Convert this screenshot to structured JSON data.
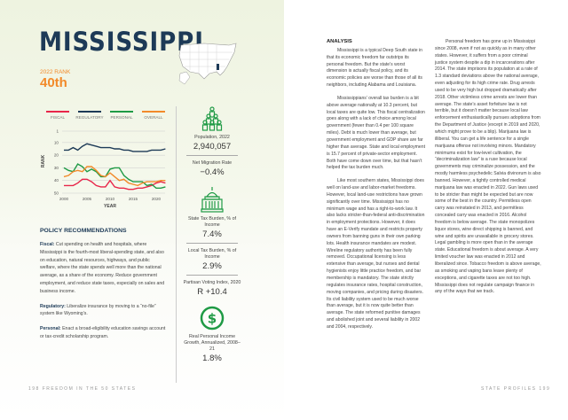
{
  "left_page": {
    "state": "MISSISSIPPI",
    "rank_label": "2022 RANK",
    "rank": "40th",
    "colors": {
      "navy": "#1d3a57",
      "orange": "#f28a2a",
      "green": "#1f9a45",
      "red": "#e8264a"
    },
    "stats": [
      {
        "icon": "people-pyramid-icon",
        "label": "Population, 2022",
        "value": "2,940,057"
      },
      {
        "label": "Net Migration Rate",
        "value": "−0.4%"
      },
      {
        "icon": "capitol-building-icon",
        "label": "State Tax Burden, % of Income",
        "value": "7.4%"
      },
      {
        "label": "Local Tax Burden, % of Income",
        "value": "2.9%"
      },
      {
        "label": "Partisan Voting Index, 2020",
        "value": "R +10.4"
      },
      {
        "icon": "dollar-circle-icon",
        "label": "Real Personal Income Growth, Annualized, 2008–21",
        "value": "1.8%"
      }
    ],
    "policy": {
      "heading": "POLICY RECOMMENDATIONS",
      "items": [
        {
          "label": "Fiscal:",
          "text": "Cut spending on health and hospitals, where Mississippi is the fourth-most liberal-spending state, and also on education, natural resources, highways, and public welfare, where the state spends well more than the national average, as a share of the economy. Reduce government employment, and reduce state taxes, especially on sales and business income."
        },
        {
          "label": "Regulatory:",
          "text": "Liberalize insurance by moving to a “no-file” system like Wyoming’s."
        },
        {
          "label": "Personal:",
          "text": "Enact a broad-eligibility education savings account or tax-credit scholarship program."
        }
      ]
    },
    "footer": "198   FREEDOM IN THE 50 STATES"
  },
  "chart_data": {
    "type": "line",
    "xlabel": "YEAR",
    "ylabel": "RANK",
    "x": [
      2000,
      2001,
      2002,
      2003,
      2004,
      2005,
      2006,
      2007,
      2008,
      2009,
      2010,
      2011,
      2012,
      2013,
      2014,
      2015,
      2016,
      2017,
      2018,
      2019,
      2020,
      2021,
      2022
    ],
    "xticks": [
      2000,
      2005,
      2010,
      2015,
      2020
    ],
    "yticks": [
      1,
      10,
      20,
      30,
      40,
      50
    ],
    "ylim": [
      1,
      50
    ],
    "y_inverted": true,
    "legend": "top",
    "series": [
      {
        "name": "FISCAL",
        "color": "#e8264a",
        "values": [
          44,
          44,
          44,
          42,
          39,
          39,
          41,
          44,
          45,
          45,
          40,
          45,
          46,
          46,
          47,
          47,
          46,
          46,
          45,
          44,
          42,
          41,
          42
        ]
      },
      {
        "name": "REGULATORY",
        "color": "#1d3a57",
        "values": [
          16,
          16,
          14,
          16,
          13,
          11,
          12,
          13,
          14,
          14,
          14,
          15,
          15,
          16,
          16,
          17,
          17,
          17,
          17,
          16,
          16,
          16,
          15
        ]
      },
      {
        "name": "PERSONAL",
        "color": "#1f9a45",
        "values": [
          30,
          32,
          33,
          27,
          29,
          33,
          31,
          33,
          37,
          37,
          31,
          30,
          30,
          36,
          39,
          41,
          41,
          41,
          44,
          43,
          46,
          46,
          45
        ]
      },
      {
        "name": "OVERALL",
        "color": "#f28a2a",
        "values": [
          37,
          36,
          33,
          32,
          33,
          29,
          29,
          32,
          36,
          37,
          34,
          37,
          40,
          39,
          42,
          43,
          44,
          42,
          41,
          41,
          41,
          40,
          40
        ]
      }
    ]
  },
  "right_page": {
    "heading": "ANALYSIS",
    "col1": [
      "Mississippi is a typical Deep South state in that its economic freedom far outstrips its personal freedom. But the state’s worst dimension is actually fiscal policy, and its economic policies are worse than those of all its neighbors, including Alabama and Louisiana.",
      "Mississippians’ overall tax burden is a bit above average nationally at 10.3 percent, but local taxes are quite low. This fiscal centralization goes along with a lack of choice among local government (fewer than 0.4 per 100 square miles). Debt is much lower than average, but government employment and GDP share are far higher than average. State and local employment is 15.7 percent of private-sector employment. Both have come down over time, but that hasn’t helped the tax burden much.",
      "Like most southern states, Mississippi does well on land-use and labor-market freedoms. However, local land-use restrictions have grown significantly over time. Mississippi has no minimum wage and has a right-to-work law. It also lacks stricter-than-federal anti-discrimination in employment protections. However, it does have an E-Verify mandate and restricts property owners from banning guns in their own parking lots. Health insurance mandates are modest. Wireline regulatory authority has been fully removed. Occupational licensing is less extensive than average, but nurses and dental hygienists enjoy little practice freedom, and bar membership is mandatory. The state strictly regulates insurance rates, hospital construction, moving companies, and pricing during disasters. Its civil liability system used to be much worse than average, but it is now quite better than average. The state reformed punitive damages and abolished joint and several liability in 2002 and 2004, respectively."
    ],
    "col2": [
      "Personal freedom has gone up in Mississippi since 2008, even if not as quickly as in many other states. However, it suffers from a poor criminal justice system despite a dip in incarcerations after 2014. The state imprisons its population at a rate of 1.3 standard deviations above the national average, even adjusting for its high crime rate. Drug arrests used to be very high but dropped dramatically after 2018. Other victimless crime arrests are lower than average. The state’s asset forfeiture law is not terrible, but it doesn’t matter because local law enforcement enthusiastically pursues adoptions from the Department of Justice (except in 2019 and 2020, which might prove to be a blip). Marijuana law is illiberal. You can get a life sentence for a single marijuana offense not involving minors. Mandatory minimums exist for low-level cultivation, the “decriminalization law” is a ruse because local governments may criminalize possession, and the mostly harmless psychedelic Salvia divinorum is also banned. However, a tightly controlled medical marijuana law was enacted in 2022. Gun laws used to be stricter than might be expected but are now some of the best in the country. Permitless open carry was reinstated in 2013, and permitless concealed carry was enacted in 2016. Alcohol freedom is below average. The state monopolizes liquor stores, wine direct shipping is banned, and wine and spirits are unavailable in grocery stores. Legal gambling is more open than in the average state. Educational freedom is about average. A very limited voucher law was enacted in 2012 and liberalized since. Tobacco freedom is above average, as smoking and vaping bans leave plenty of exceptions, and cigarette taxes are not too high. Mississippi does not regulate campaign finance in any of the ways that we track."
    ],
    "footer": "STATE PROFILES   199"
  }
}
